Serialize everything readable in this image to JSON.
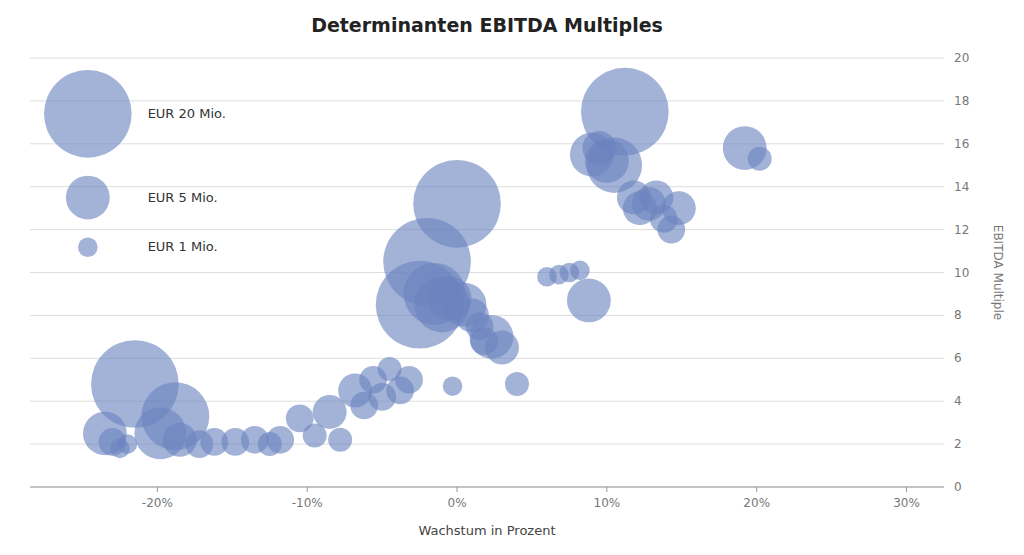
{
  "chart_data": {
    "type": "bubble",
    "title": "Determinanten EBITDA Multiples",
    "xlabel": "Wachstum in Prozent",
    "ylabel": "EBITDA Multiple",
    "color": "#6b83bf",
    "xlim": [
      -0.285,
      0.325
    ],
    "ylim": [
      0,
      20
    ],
    "xticks": [
      {
        "value": -0.2,
        "label": "-20%"
      },
      {
        "value": -0.1,
        "label": "-10%"
      },
      {
        "value": 0.0,
        "label": "0%"
      },
      {
        "value": 0.1,
        "label": "10%"
      },
      {
        "value": 0.2,
        "label": "20%"
      },
      {
        "value": 0.3,
        "label": "30%"
      }
    ],
    "yticks": [
      0,
      2,
      4,
      6,
      8,
      10,
      12,
      14,
      16,
      18,
      20
    ],
    "grid": true,
    "legend": "upper left",
    "size_legend": [
      {
        "label": "EUR 20 Mio.",
        "size": 20
      },
      {
        "label": "EUR 5 Mio.",
        "size": 5
      },
      {
        "label": "EUR 1 Mio.",
        "size": 1
      }
    ],
    "x": [
      -0.235,
      -0.23,
      -0.225,
      -0.22,
      -0.215,
      -0.198,
      -0.185,
      -0.188,
      -0.172,
      -0.162,
      -0.148,
      -0.135,
      -0.125,
      -0.118,
      -0.105,
      -0.095,
      -0.085,
      -0.078,
      -0.068,
      -0.062,
      -0.056,
      -0.05,
      -0.045,
      -0.038,
      -0.032,
      -0.025,
      -0.02,
      -0.015,
      -0.01,
      -0.005,
      0.0,
      0.005,
      0.01,
      0.015,
      0.018,
      0.023,
      0.03,
      0.04,
      -0.003,
      0.06,
      0.068,
      0.075,
      0.082,
      0.088,
      0.09,
      0.095,
      0.1,
      0.105,
      0.112,
      0.118,
      0.122,
      0.128,
      0.133,
      0.138,
      0.143,
      0.148,
      0.192,
      0.202
    ],
    "values": [
      2.5,
      2.1,
      1.8,
      2.0,
      4.8,
      2.5,
      2.2,
      3.3,
      2.0,
      2.1,
      2.1,
      2.2,
      2.0,
      2.2,
      3.2,
      2.4,
      3.5,
      2.2,
      4.5,
      3.8,
      5.0,
      4.2,
      5.5,
      4.5,
      5.0,
      8.5,
      10.5,
      9.0,
      8.5,
      8.8,
      13.2,
      8.5,
      8.0,
      7.5,
      6.8,
      7.0,
      6.5,
      4.8,
      4.7,
      9.8,
      9.9,
      10.0,
      10.1,
      8.7,
      15.5,
      15.8,
      15.2,
      15.0,
      17.5,
      13.5,
      13.0,
      13.2,
      13.5,
      12.5,
      12.0,
      13.0,
      15.8,
      15.3
    ],
    "sizes": [
      5,
      2,
      1,
      1,
      20,
      7,
      3,
      12,
      2,
      2,
      2,
      2,
      1.5,
      2,
      2,
      1.5,
      3,
      1.5,
      3,
      2,
      2,
      2,
      1.5,
      2,
      2,
      20,
      20,
      10,
      8,
      5,
      20,
      5,
      3,
      2,
      2,
      5,
      3,
      1.5,
      1,
      1,
      1,
      1,
      1,
      5,
      5,
      3,
      5,
      8,
      20,
      3,
      3,
      3,
      3,
      2,
      2,
      3,
      5,
      1.5
    ]
  }
}
